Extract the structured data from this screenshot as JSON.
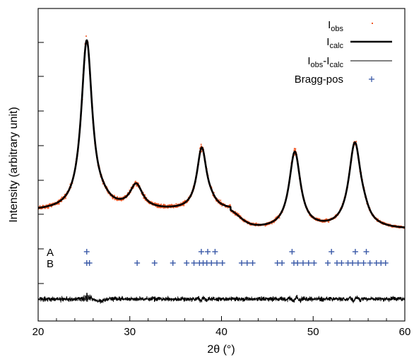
{
  "chart_data": {
    "type": "scatter",
    "xlabel": "2θ (°)",
    "ylabel": "Intensity (arbitrary unit)",
    "xlim": [
      20,
      60
    ],
    "x_ticks": [
      20,
      30,
      40,
      50,
      60
    ],
    "y_tick_labels_shown": false,
    "legend_position": "top-right",
    "legend": [
      {
        "base": "I",
        "sub": "obs",
        "text": "",
        "style": "dots",
        "color": "#f05a28"
      },
      {
        "base": "I",
        "sub": "calc",
        "text": "",
        "style": "thick-line",
        "color": "#000000"
      },
      {
        "base": "I",
        "sub": "obs",
        "text": "-I",
        "sub2": "calc",
        "style": "thin-line",
        "color": "#000000"
      },
      {
        "base": "Bragg-pos",
        "sub": "",
        "text": "",
        "style": "plus",
        "color": "#3b5aa8"
      }
    ],
    "phase_labels": [
      "A",
      "B"
    ],
    "peaks_2theta": [
      25.3,
      30.8,
      37.8,
      48.0,
      54.6
    ],
    "bragg_positions": {
      "A": [
        25.3,
        37.8,
        38.5,
        39.3,
        47.7,
        52.0,
        54.6,
        55.8
      ],
      "B": [
        25.3,
        25.6,
        30.8,
        32.7,
        34.7,
        36.2,
        37.0,
        37.6,
        38.0,
        38.4,
        38.9,
        39.5,
        40.1,
        42.2,
        42.8,
        43.4,
        46.1,
        46.6,
        47.9,
        48.3,
        48.9,
        49.5,
        50.1,
        51.6,
        52.6,
        53.1,
        53.8,
        54.3,
        54.9,
        55.5,
        56.2,
        56.9,
        57.4,
        57.9
      ]
    },
    "colors": {
      "observed": "#f05a28",
      "calculated": "#000000",
      "bragg": "#3b5aa8"
    }
  }
}
